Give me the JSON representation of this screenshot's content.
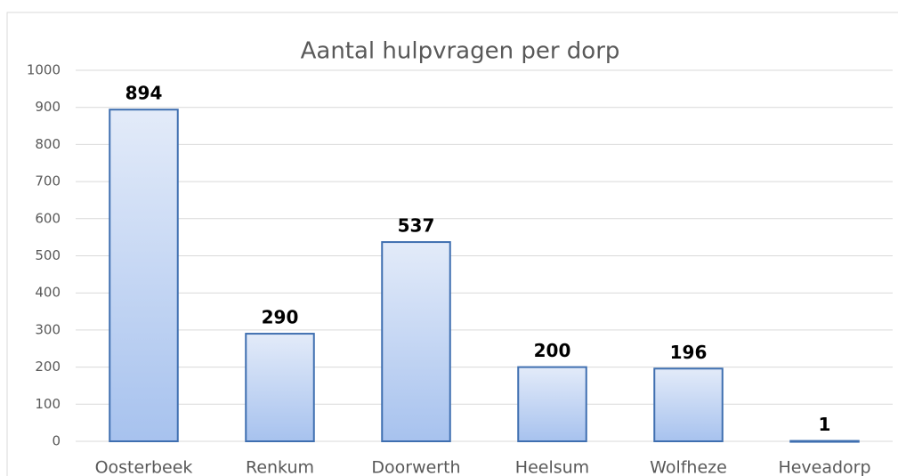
{
  "chart_data": {
    "type": "bar",
    "title": "Aantal hulpvragen per dorp",
    "categories": [
      "Oosterbeek",
      "Renkum",
      "Doorwerth",
      "Heelsum",
      "Wolfheze",
      "Heveadorp"
    ],
    "values": [
      894,
      290,
      537,
      200,
      196,
      1
    ],
    "color": "#3f6fb0",
    "ylim": [
      0,
      1000
    ],
    "yticks": [
      0,
      100,
      200,
      300,
      400,
      500,
      600,
      700,
      800,
      900,
      1000
    ],
    "grid": true
  }
}
